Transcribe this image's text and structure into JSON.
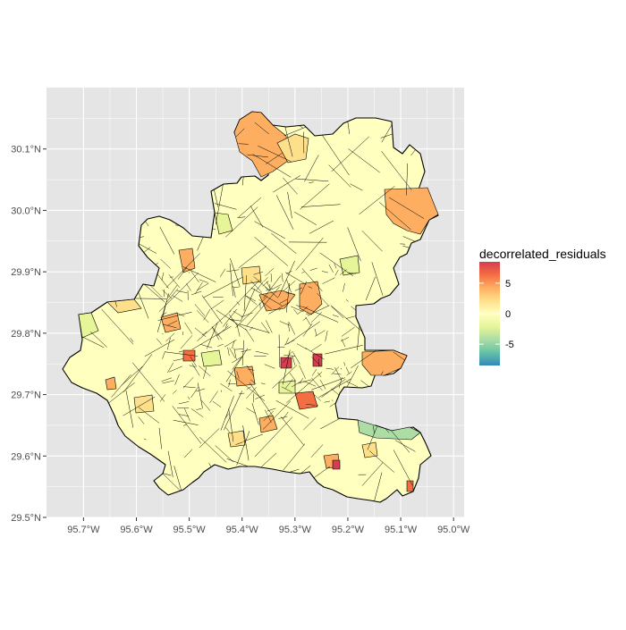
{
  "map": {
    "x_ticks": [
      "95.7°W",
      "95.6°W",
      "95.5°W",
      "95.4°W",
      "95.3°W",
      "95.2°W",
      "95.1°W",
      "95.0°W"
    ],
    "y_ticks": [
      "29.5°N",
      "29.6°N",
      "29.7°N",
      "29.8°N",
      "29.9°N",
      "30.0°N",
      "30.1°N"
    ],
    "lon_values": [
      -95.7,
      -95.6,
      -95.5,
      -95.4,
      -95.3,
      -95.2,
      -95.1,
      -95.0
    ],
    "lat_values": [
      29.5,
      29.6,
      29.7,
      29.8,
      29.9,
      30.0,
      30.1
    ],
    "lon_range": [
      -95.77,
      -94.98
    ],
    "lat_range": [
      29.5,
      30.2
    ],
    "panel_background": "#e5e5e5",
    "grid_color": "#ffffff",
    "border_color": "#000000"
  },
  "legend": {
    "title": "decorrelated_residuals",
    "labels": [
      "5",
      "0",
      "-5"
    ],
    "label_values": [
      5,
      0,
      -5
    ],
    "range": [
      -8.5,
      8.5
    ],
    "gradient_colors": [
      "#d53e4f",
      "#f46d43",
      "#fdae61",
      "#fee08b",
      "#ffffbf",
      "#e6f598",
      "#abdda4",
      "#66c2a5",
      "#3288bd"
    ]
  },
  "fill_palette": {
    "pale_yellow": "#ffffbf",
    "light_orange": "#fee08b",
    "orange": "#fdae61",
    "red_orange": "#f46d43",
    "red": "#d53e4f",
    "light_green": "#e6f598",
    "green": "#abdda4"
  }
}
